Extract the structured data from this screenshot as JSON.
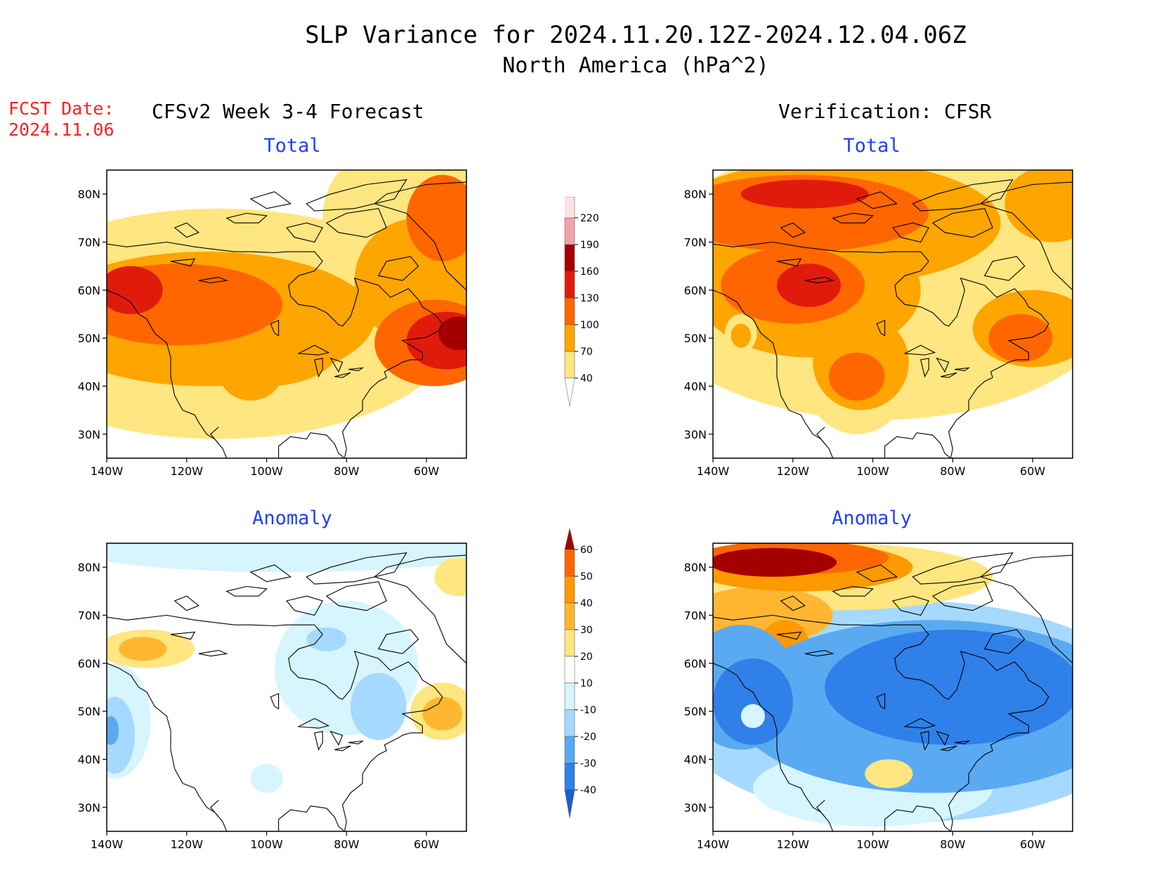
{
  "header": {
    "title": "SLP Variance for 2024.11.20.12Z-2024.12.04.06Z",
    "subtitle": "North America (hPa^2)",
    "fcst_label": "FCST Date:",
    "fcst_date": "2024.11.06"
  },
  "columns": {
    "left_title": "CFSv2 Week 3-4 Forecast",
    "right_title": "Verification: CFSR"
  },
  "panels": {
    "total_label": "Total",
    "anomaly_label": "Anomaly"
  },
  "axes": {
    "lat_ticks": [
      "80N",
      "70N",
      "60N",
      "50N",
      "40N",
      "30N"
    ],
    "lon_ticks": [
      "140W",
      "120W",
      "100W",
      "80W",
      "60W"
    ]
  },
  "colorbars": {
    "total": {
      "levels": [
        "40",
        "70",
        "100",
        "130",
        "160",
        "190",
        "220"
      ],
      "colors": [
        "#ffe680",
        "#ffa500",
        "#ff6600",
        "#e11b0c",
        "#a50000",
        "#f4a3a8",
        "#fde3e6"
      ]
    },
    "anomaly": {
      "levels": [
        "60",
        "50",
        "40",
        "30",
        "20",
        "10",
        "-10",
        "-20",
        "-30",
        "-40"
      ],
      "colors": [
        "#a50000",
        "#ff6600",
        "#ff9900",
        "#ffb732",
        "#ffe680",
        "#ffffff",
        "#d6f5ff",
        "#a6d9ff",
        "#5aaaf2",
        "#2f80e8",
        "#1a5ed3"
      ]
    }
  },
  "colors": {
    "title_red": "#ff2020",
    "label_blue": "#1f3fff"
  }
}
